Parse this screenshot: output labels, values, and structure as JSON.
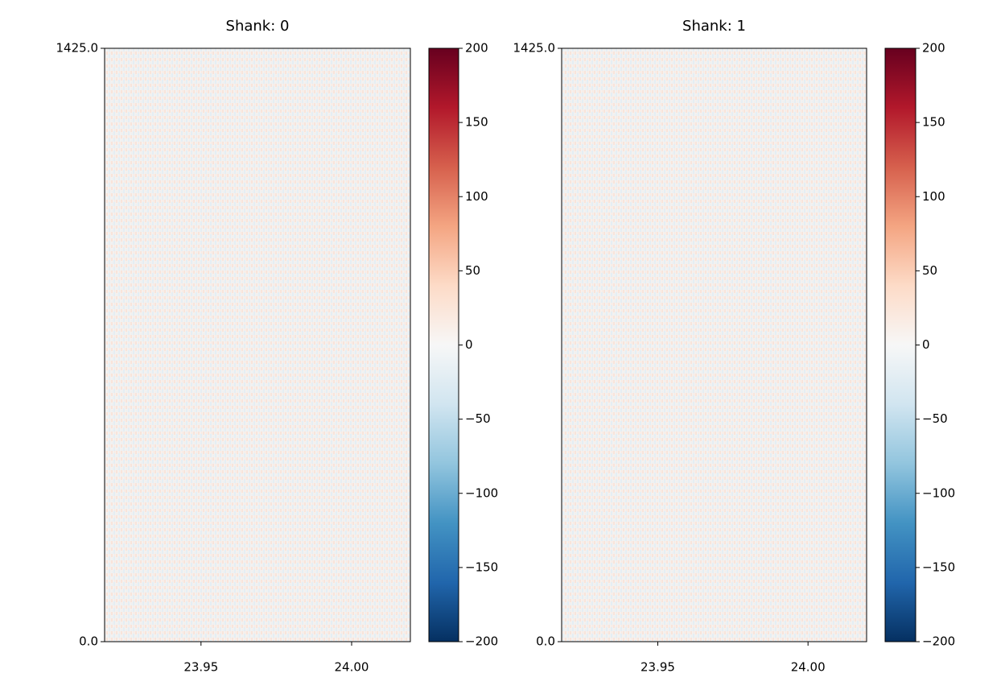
{
  "chart_data": [
    {
      "type": "heatmap",
      "title": "Shank: 0",
      "colormap": "RdBu_r",
      "xlim": [
        23.918,
        24.0195
      ],
      "xticks": [
        {
          "value": 23.95,
          "label": "23.95"
        },
        {
          "value": 24.0,
          "label": "24.00"
        }
      ],
      "ylim": [
        0,
        1425
      ],
      "yticks": [
        {
          "value": 0,
          "label": "0.0"
        },
        {
          "value": 1425,
          "label": "1425.0"
        }
      ],
      "clim": [
        -200,
        200
      ],
      "cticks": [
        {
          "value": -200,
          "label": "−200"
        },
        {
          "value": -150,
          "label": "−150"
        },
        {
          "value": -100,
          "label": "−100"
        },
        {
          "value": -50,
          "label": "−50"
        },
        0,
        50,
        100,
        150,
        200
      ]
    },
    {
      "type": "heatmap",
      "title": "Shank: 1",
      "colormap": "RdBu_r",
      "xlim": [
        23.918,
        24.0195
      ],
      "xticks": [
        {
          "value": 23.95,
          "label": "23.95"
        },
        {
          "value": 24.0,
          "label": "24.00"
        }
      ],
      "ylim": [
        0,
        1425
      ],
      "yticks": [
        {
          "value": 0,
          "label": "0.0"
        },
        {
          "value": 1425,
          "label": "1425.0"
        }
      ],
      "clim": [
        -200,
        200
      ],
      "cticks": [
        {
          "value": -200,
          "label": "−200"
        },
        {
          "value": -150,
          "label": "−150"
        },
        {
          "value": -100,
          "label": "−100"
        },
        {
          "value": -50,
          "label": "−50"
        },
        0,
        50,
        100,
        150,
        200
      ]
    }
  ]
}
